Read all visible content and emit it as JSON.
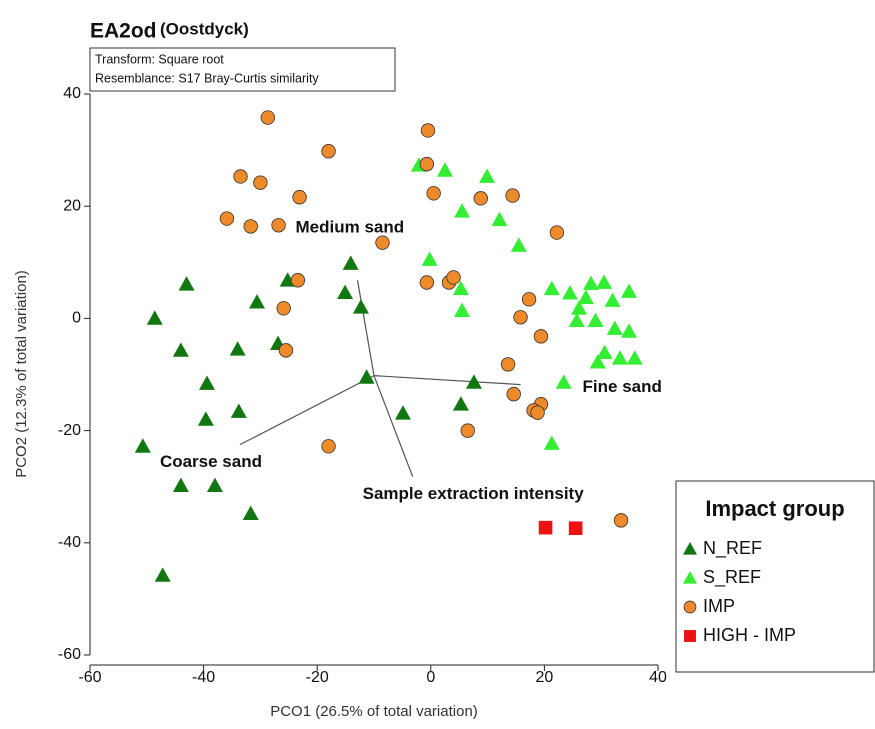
{
  "chart_data": {
    "type": "scatter",
    "title": "EA2od",
    "subtitle": "(Oostdyck)",
    "notes": [
      "Transform: Square root",
      "Resemblance: S17 Bray-Curtis similarity"
    ],
    "x_label": "PCO1 (26.5% of total variation)",
    "y_label": "PCO2 (12.3% of total variation)",
    "xlim": [
      -60,
      40
    ],
    "ylim": [
      -60,
      40
    ],
    "xticks": [
      -60,
      -40,
      -20,
      0,
      20,
      40
    ],
    "yticks": [
      -60,
      -40,
      -20,
      0,
      20,
      40
    ],
    "legend_title": "Impact group",
    "legend_position": "lower right",
    "vector_origin": {
      "x": -10.0,
      "y": -10.2
    },
    "vectors": [
      {
        "label": "Medium sand",
        "x": -12.9,
        "y": 6.8
      },
      {
        "label": "Fine sand",
        "x": 15.8,
        "y": -11.8
      },
      {
        "label": "Coarse sand",
        "x": -33.6,
        "y": -22.5
      },
      {
        "label": "Sample extraction intensity",
        "x": -3.2,
        "y": -28.2
      }
    ],
    "series": [
      {
        "name": "N_REF",
        "color": "#117711",
        "marker": "triangle",
        "x": [
          -43.0,
          -48.6,
          -44.0,
          -39.4,
          -39.6,
          -34.0,
          -33.8,
          -50.7,
          -44.0,
          -38.0,
          -31.7,
          -47.2,
          -30.6,
          -25.2,
          -26.9,
          -15.1,
          -12.3,
          -14.1,
          -11.3,
          -4.9,
          7.6,
          5.3
        ],
        "y": [
          6.1,
          0,
          -5.7,
          -11.6,
          -18.0,
          -5.5,
          -16.6,
          -22.8,
          -29.8,
          -29.8,
          -34.8,
          -45.8,
          2.9,
          6.8,
          -4.5,
          4.6,
          2.0,
          9.8,
          -10.5,
          -16.9,
          -11.4,
          -15.3
        ]
      },
      {
        "name": "S_REF",
        "color": "#33ee33",
        "marker": "triangle",
        "x": [
          -2.1,
          2.5,
          9.9,
          5.5,
          12.1,
          15.5,
          -0.2,
          5.3,
          5.5,
          21.3,
          24.5,
          28.2,
          30.5,
          27.3,
          26.1,
          25.7,
          29.0,
          32.0,
          34.9,
          32.4,
          34.9,
          30.6,
          29.4,
          33.3,
          35.9,
          23.4,
          21.3
        ],
        "y": [
          27.3,
          26.4,
          25.3,
          19.1,
          17.6,
          13.0,
          10.5,
          5.3,
          1.4,
          5.3,
          4.5,
          6.2,
          6.4,
          3.7,
          1.8,
          -0.4,
          -0.4,
          3.2,
          4.8,
          -1.8,
          -2.3,
          -6.1,
          -7.8,
          -7.1,
          -7.1,
          -11.4,
          -22.3
        ]
      },
      {
        "name": "IMP",
        "color": "#ee8a2a",
        "marker": "circle",
        "x": [
          -28.7,
          -0.5,
          -18.0,
          -33.5,
          -30.0,
          -23.1,
          -35.9,
          -31.7,
          -26.8,
          -0.7,
          0.5,
          8.8,
          14.4,
          22.2,
          -8.5,
          -23.4,
          -25.9,
          -25.5,
          -0.7,
          3.2,
          4.0,
          17.3,
          15.8,
          19.4,
          13.6,
          14.6,
          19.4,
          18.1,
          18.8,
          6.5,
          -18.0,
          33.5
        ],
        "y": [
          35.8,
          33.5,
          29.8,
          25.3,
          24.2,
          21.6,
          17.8,
          16.4,
          16.6,
          27.5,
          22.3,
          21.4,
          21.9,
          15.3,
          13.5,
          6.8,
          1.8,
          -5.7,
          6.4,
          6.4,
          7.3,
          3.4,
          0.2,
          -3.2,
          -8.2,
          -13.5,
          -15.3,
          -16.4,
          -16.8,
          -20.0,
          -22.8,
          -36.0
        ]
      },
      {
        "name": "HIGH - IMP",
        "color": "#ee1111",
        "marker": "square",
        "x": [
          20.2,
          25.5
        ],
        "y": [
          -37.3,
          -37.4
        ]
      }
    ]
  }
}
